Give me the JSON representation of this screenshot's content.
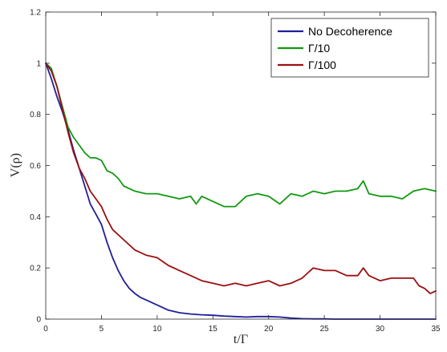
{
  "chart_data": {
    "type": "line",
    "xlabel": "t/Γ",
    "ylabel": "V(ρ)",
    "xlim": [
      0,
      35
    ],
    "ylim": [
      0,
      1.2
    ],
    "xticks": [
      0,
      5,
      10,
      15,
      20,
      25,
      30,
      35
    ],
    "yticks": [
      0,
      0.2,
      0.4,
      0.6,
      0.8,
      1,
      1.2
    ],
    "grid": false,
    "legend_position": "top-right",
    "series": [
      {
        "name": "No Decoherence",
        "color": "#1f1f9a",
        "x": [
          0,
          0.5,
          1,
          1.5,
          2,
          2.5,
          3,
          3.5,
          4,
          4.5,
          5,
          5.5,
          6,
          6.5,
          7,
          7.5,
          8,
          8.5,
          9,
          10,
          11,
          12,
          13,
          14,
          15,
          16,
          17,
          18,
          19,
          20,
          21,
          22,
          23,
          24,
          25,
          26,
          27,
          28,
          29,
          30,
          31,
          32,
          33,
          34,
          35
        ],
        "values": [
          1.0,
          0.94,
          0.87,
          0.81,
          0.74,
          0.66,
          0.59,
          0.52,
          0.45,
          0.41,
          0.37,
          0.3,
          0.24,
          0.19,
          0.15,
          0.12,
          0.1,
          0.085,
          0.075,
          0.055,
          0.035,
          0.025,
          0.02,
          0.017,
          0.015,
          0.012,
          0.01,
          0.008,
          0.01,
          0.01,
          0.008,
          0.004,
          0.002,
          0.001,
          0.001,
          0.0,
          0.0,
          0.0,
          0.0,
          0.0,
          0.0,
          0.0,
          0.0,
          0.0,
          0.0
        ]
      },
      {
        "name": "Γ/10",
        "color": "#119911",
        "x": [
          0,
          0.5,
          1,
          1.5,
          2,
          2.5,
          3,
          3.5,
          4,
          4.5,
          5,
          5.5,
          6,
          6.5,
          7,
          8,
          9,
          10,
          11,
          12,
          13,
          13.5,
          14,
          15,
          16,
          17,
          18,
          19,
          20,
          21,
          22,
          23,
          24,
          25,
          26,
          27,
          28,
          28.5,
          29,
          30,
          31,
          32,
          33,
          34,
          35
        ],
        "values": [
          1.0,
          0.98,
          0.91,
          0.83,
          0.75,
          0.71,
          0.68,
          0.65,
          0.63,
          0.63,
          0.62,
          0.58,
          0.57,
          0.55,
          0.52,
          0.5,
          0.49,
          0.49,
          0.48,
          0.47,
          0.48,
          0.45,
          0.48,
          0.46,
          0.44,
          0.44,
          0.48,
          0.49,
          0.48,
          0.45,
          0.49,
          0.48,
          0.5,
          0.49,
          0.5,
          0.5,
          0.51,
          0.54,
          0.49,
          0.48,
          0.48,
          0.47,
          0.5,
          0.51,
          0.5
        ]
      },
      {
        "name": "Γ/100",
        "color": "#9a1010",
        "x": [
          0,
          0.5,
          1,
          1.5,
          2,
          2.5,
          3,
          3.5,
          4,
          4.5,
          5,
          5.5,
          6,
          7,
          8,
          9,
          10,
          11,
          12,
          13,
          14,
          15,
          16,
          17,
          18,
          19,
          20,
          21,
          22,
          23,
          24,
          25,
          26,
          27,
          28,
          28.5,
          29,
          30,
          31,
          32,
          33,
          33.5,
          34,
          34.5,
          35
        ],
        "values": [
          1.0,
          0.97,
          0.91,
          0.82,
          0.73,
          0.65,
          0.59,
          0.55,
          0.5,
          0.47,
          0.44,
          0.39,
          0.35,
          0.31,
          0.27,
          0.25,
          0.24,
          0.21,
          0.19,
          0.17,
          0.15,
          0.14,
          0.13,
          0.14,
          0.13,
          0.14,
          0.15,
          0.13,
          0.14,
          0.16,
          0.2,
          0.19,
          0.19,
          0.17,
          0.17,
          0.2,
          0.17,
          0.15,
          0.16,
          0.16,
          0.16,
          0.13,
          0.12,
          0.1,
          0.11
        ]
      }
    ]
  }
}
